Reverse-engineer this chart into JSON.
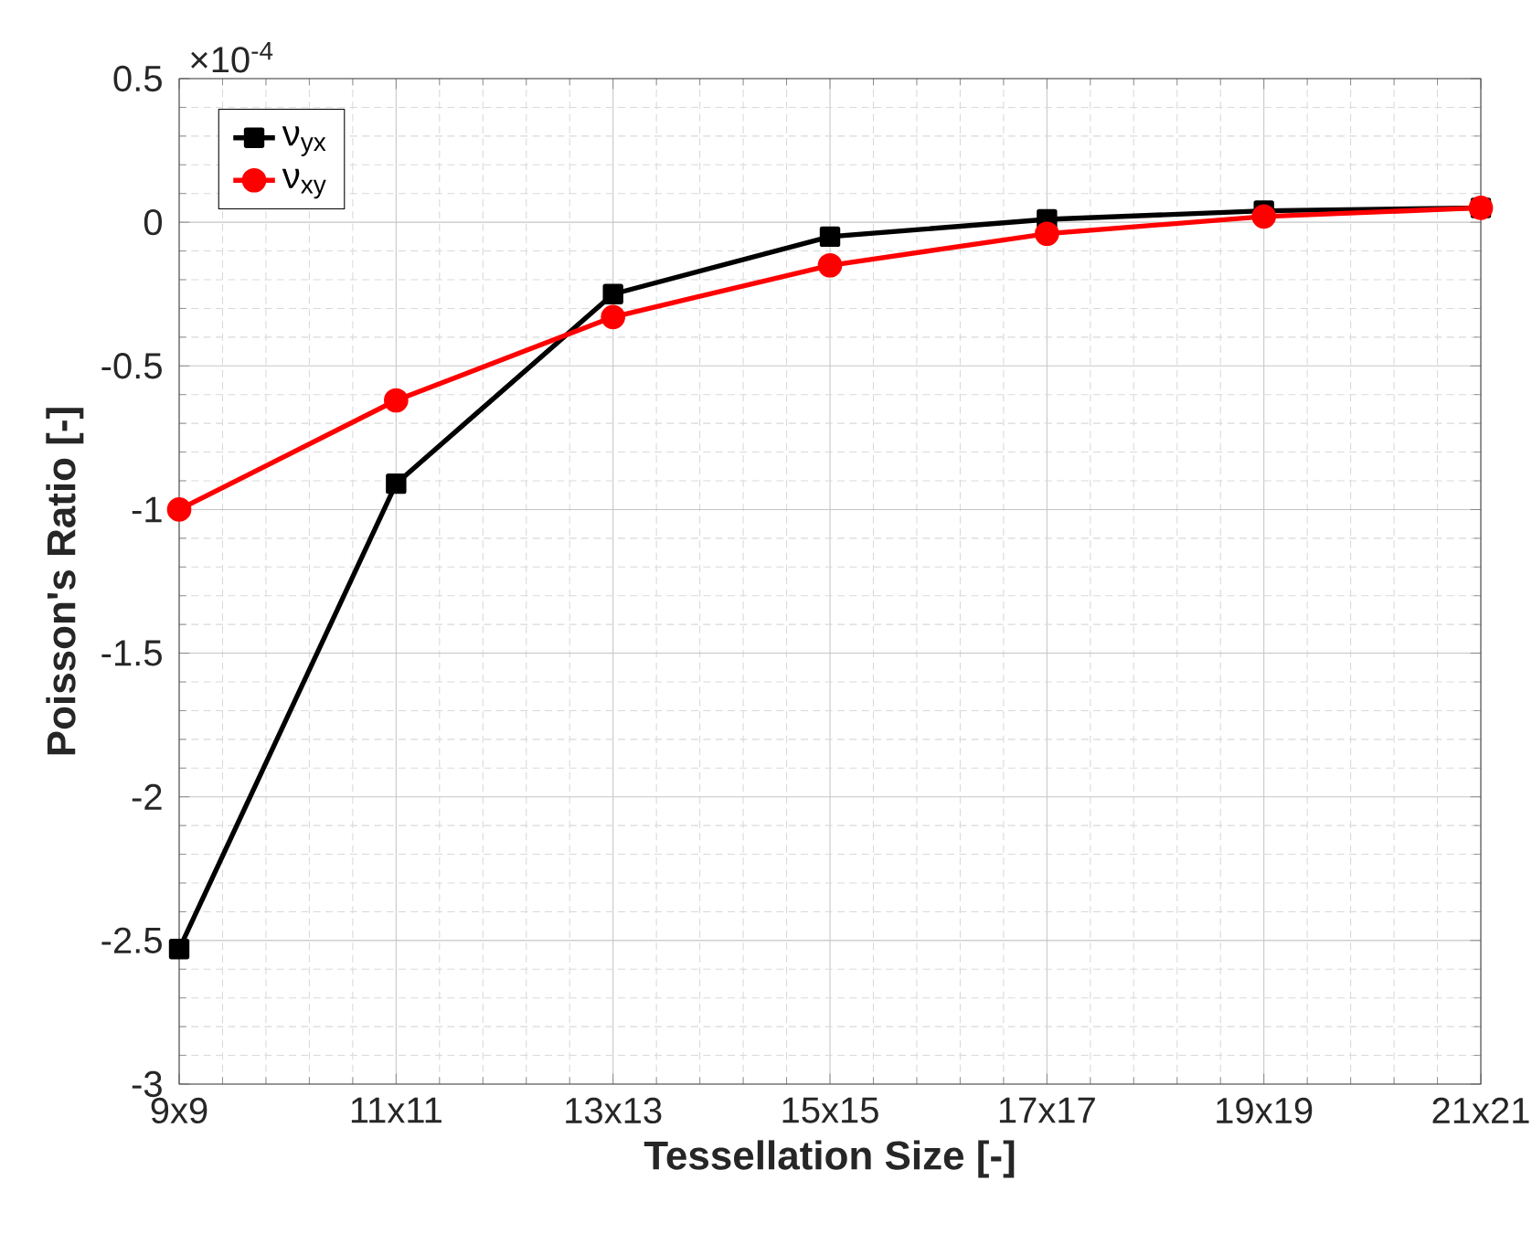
{
  "chart_data": {
    "type": "line",
    "xlabel": "Tessellation Size [-]",
    "ylabel": "Poisson's Ratio [-]",
    "categories": [
      "9x9",
      "11x11",
      "13x13",
      "15x15",
      "17x17",
      "19x19",
      "21x21"
    ],
    "series": [
      {
        "name": "ν$_{yx}$",
        "color": "#000000",
        "marker": "square",
        "values": [
          -2.53,
          -0.91,
          -0.25,
          -0.05,
          0.01,
          0.04,
          0.05
        ]
      },
      {
        "name": "ν$_{xy}$",
        "color": "#ff0000",
        "marker": "circle",
        "values": [
          -1.0,
          -0.62,
          -0.33,
          -0.15,
          -0.04,
          0.02,
          0.05
        ]
      }
    ],
    "ylim": [
      -3,
      0.5
    ],
    "yticks": [
      -3,
      -2.5,
      -2,
      -1.5,
      -1,
      -0.5,
      0,
      0.5
    ],
    "annotations": [
      "×10$^{-4}$"
    ],
    "grid": true,
    "legend": "top left",
    "line_style": "solid"
  }
}
